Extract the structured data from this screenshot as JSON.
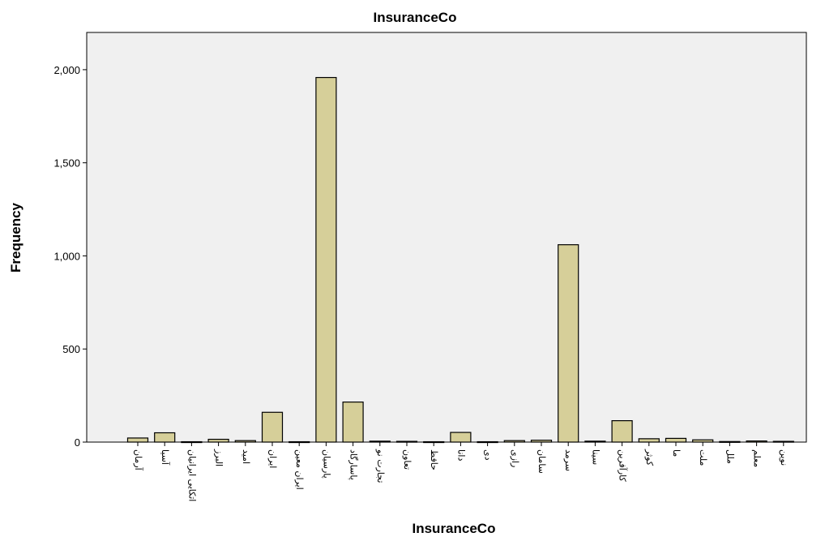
{
  "chart_data": {
    "type": "bar",
    "title": "InsuranceCo",
    "xlabel": "InsuranceCo",
    "ylabel": "Frequency",
    "ylim": [
      0,
      2200
    ],
    "yticks": [
      0,
      500,
      1000,
      1500,
      2000
    ],
    "ytick_labels": [
      "0",
      "500",
      "1,000",
      "1,500",
      "2,000"
    ],
    "bar_color": "#d6cf99",
    "bar_stroke": "#000000",
    "plot_bg": "#f0f0f0",
    "grid": false,
    "categories": [
      "آرمان",
      "آسیا",
      "اتکایی ایرانیان",
      "البرز",
      "امید",
      "ایران",
      "ایران معین",
      "پارسیان",
      "پاسارگاد",
      "تجارت نو",
      "تعاون",
      "حافظ",
      "دانا",
      "دی",
      "رازی",
      "سامان",
      "سرمد",
      "سینا",
      "کارآفرین",
      "کوثر",
      "ما",
      "ملت",
      "ملل",
      "معلم",
      "نوین"
    ],
    "values": [
      22,
      50,
      2,
      15,
      8,
      160,
      2,
      1958,
      215,
      5,
      4,
      2,
      52,
      2,
      8,
      10,
      1060,
      5,
      115,
      18,
      20,
      12,
      3,
      6,
      4
    ]
  }
}
